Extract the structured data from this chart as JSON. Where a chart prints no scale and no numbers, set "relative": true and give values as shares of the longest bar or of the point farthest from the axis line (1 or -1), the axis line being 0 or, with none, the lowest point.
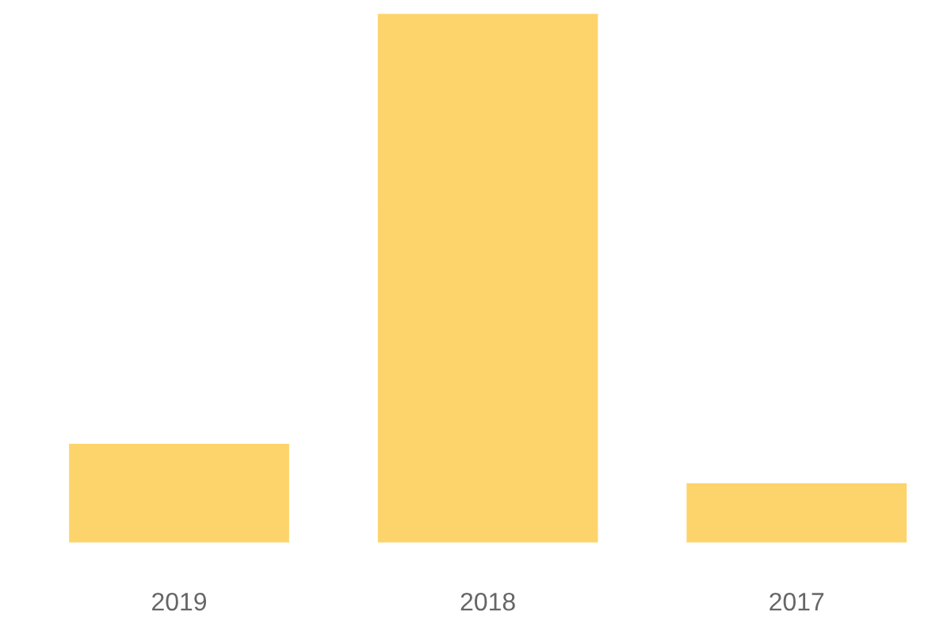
{
  "chart_data": {
    "type": "bar",
    "relative": true,
    "categories": [
      "2019",
      "2018",
      "2017"
    ],
    "values": [
      0.19,
      1,
      0.116
    ],
    "color": "#fdd46b"
  }
}
